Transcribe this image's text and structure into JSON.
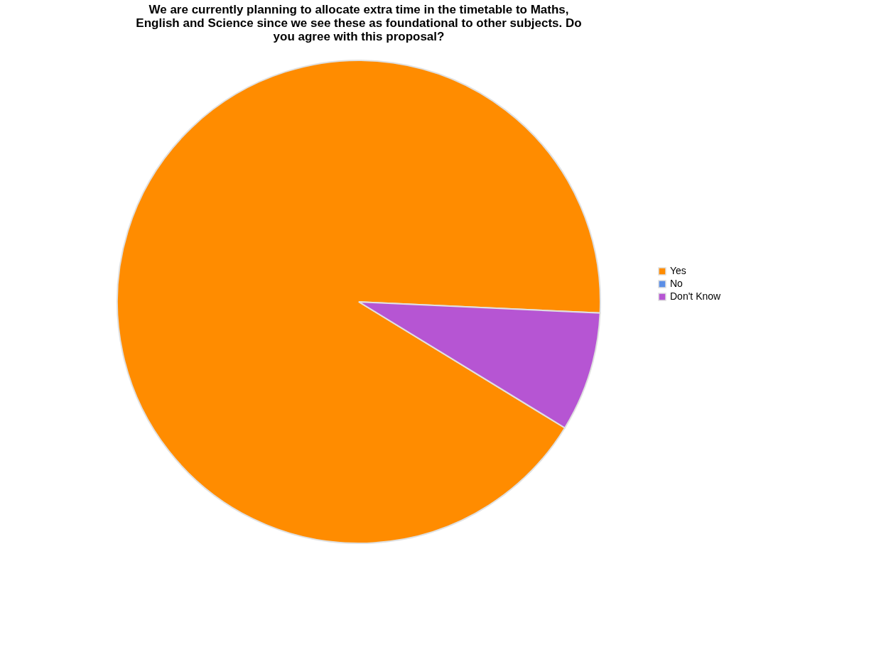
{
  "chart_data": {
    "type": "pie",
    "title": "We are currently planning to allocate extra time in the timetable to Maths, English and Science since we see these as foundational to other subjects.  Do you agree with this proposal?",
    "categories": [
      "Yes",
      "No",
      "Don't Know"
    ],
    "values": [
      92,
      0,
      8
    ],
    "colors": [
      "#ff8c00",
      "#5b8ee6",
      "#b655d3"
    ],
    "legend": "right"
  }
}
